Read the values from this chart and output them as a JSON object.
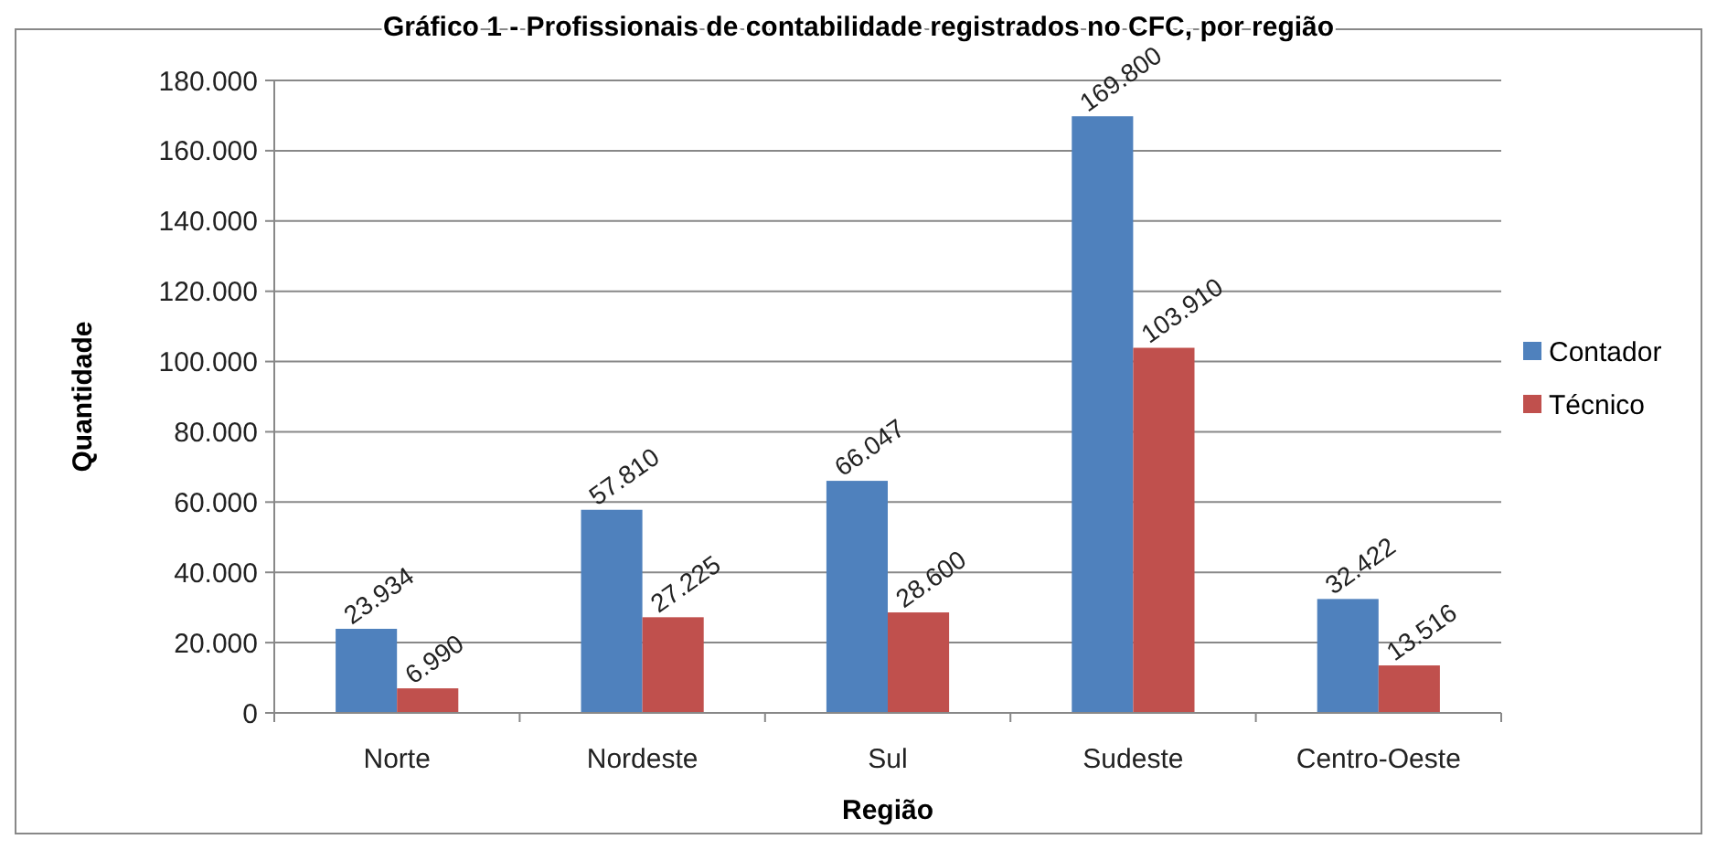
{
  "chart_data": {
    "type": "bar",
    "title": "Gráfico 1 - Profissionais de contabilidade registrados no CFC, por região",
    "xlabel": "Região",
    "ylabel": "Quantidade",
    "categories": [
      "Norte",
      "Nordeste",
      "Sul",
      "Sudeste",
      "Centro-Oeste"
    ],
    "series": [
      {
        "name": "Contador",
        "color": "#4f81bd",
        "values": [
          23934,
          57810,
          66047,
          169800,
          32422
        ],
        "value_labels": [
          "23.934",
          "57.810",
          "66.047",
          "169.800",
          "32.422"
        ]
      },
      {
        "name": "Técnico",
        "color": "#c0504d",
        "values": [
          6990,
          27225,
          28600,
          103910,
          13516
        ],
        "value_labels": [
          "6.990",
          "27.225",
          "28.600",
          "103.910",
          "13.516"
        ]
      }
    ],
    "ylim": [
      0,
      180000
    ],
    "yticks": [
      {
        "value": 0,
        "label": "0"
      },
      {
        "value": 20000,
        "label": "20.000"
      },
      {
        "value": 40000,
        "label": "40.000"
      },
      {
        "value": 60000,
        "label": "60.000"
      },
      {
        "value": 80000,
        "label": "80.000"
      },
      {
        "value": 100000,
        "label": "100.000"
      },
      {
        "value": 120000,
        "label": "120.000"
      },
      {
        "value": 140000,
        "label": "140.000"
      },
      {
        "value": 160000,
        "label": "160.000"
      },
      {
        "value": 180000,
        "label": "180.000"
      }
    ],
    "grid": "y",
    "legend": "right"
  }
}
